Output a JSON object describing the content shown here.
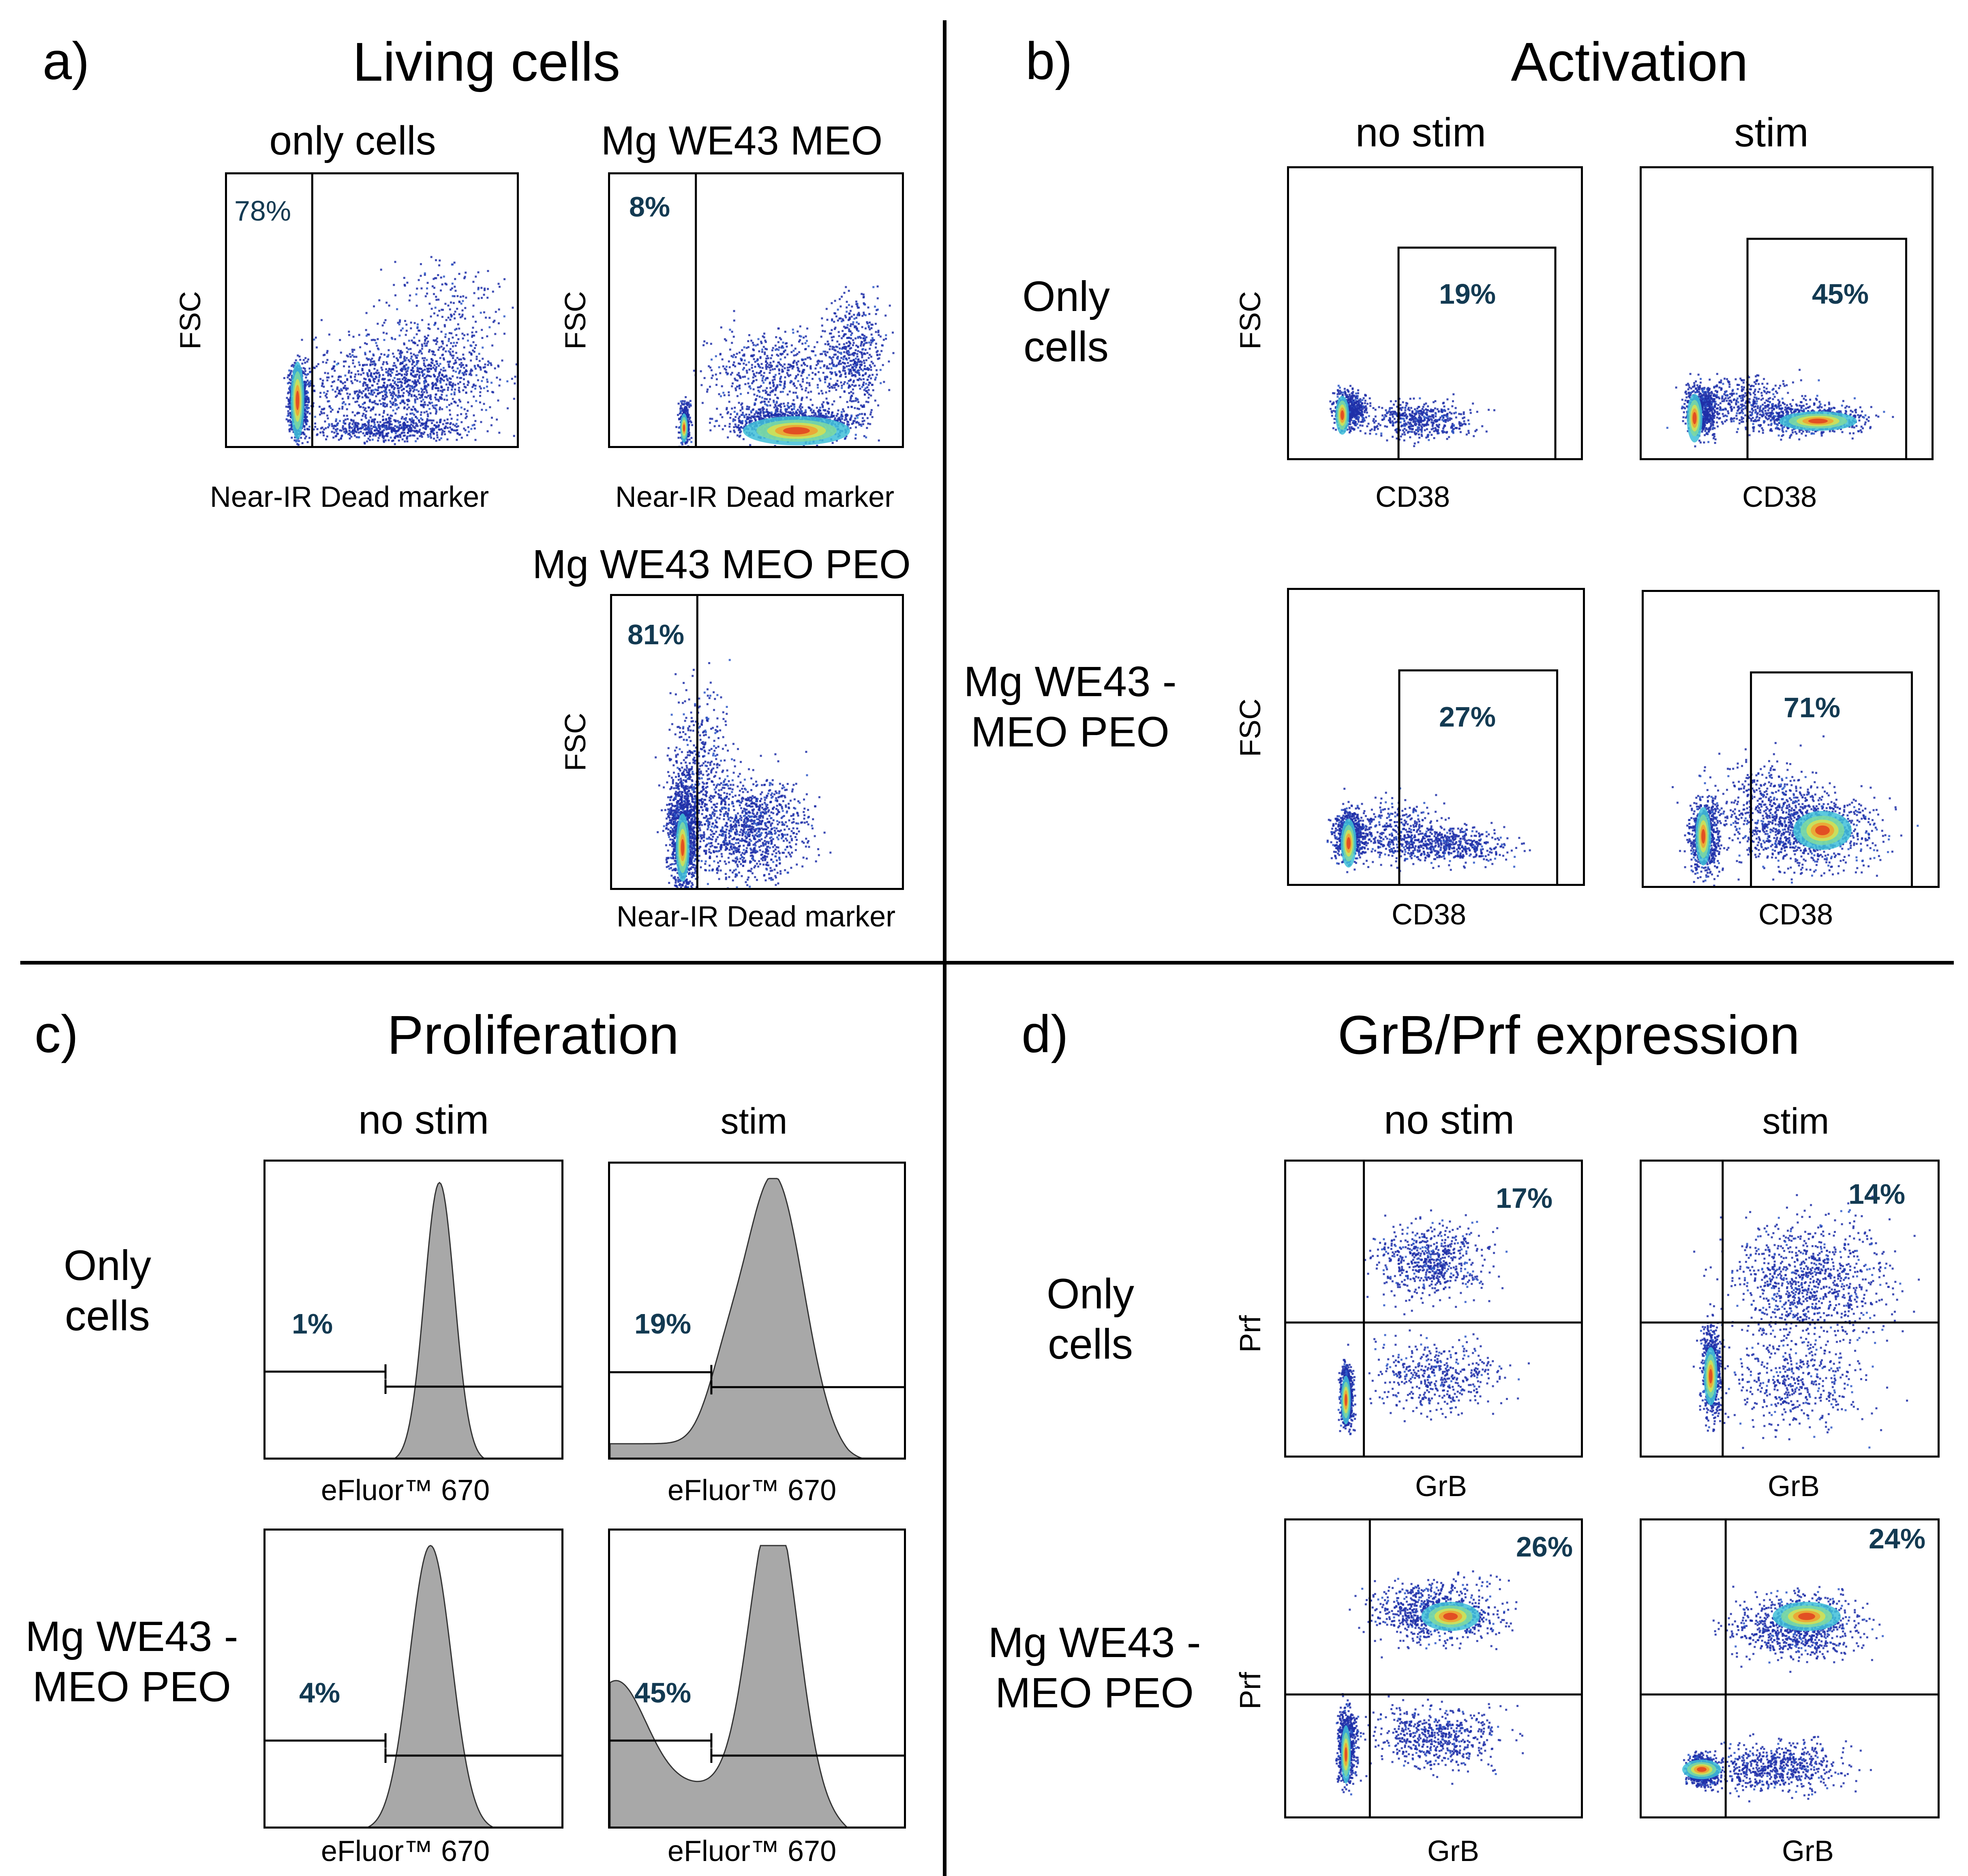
{
  "figure": {
    "dividers": "2x2 grid",
    "colors": {
      "text": "#000000",
      "percent": "#133a52",
      "histogram_fill": "#a8a8a8"
    },
    "panel_a": {
      "letter": "a)",
      "title": "Living cells",
      "plots": [
        {
          "title": "only cells",
          "ylabel": "FSC",
          "xlabel": "Near-IR Dead marker",
          "percent": "78%"
        },
        {
          "title": "Mg WE43 MEO",
          "ylabel": "FSC",
          "xlabel": "Near-IR Dead marker",
          "percent": "8%"
        },
        {
          "title": "Mg WE43 MEO PEO",
          "ylabel": "FSC",
          "xlabel": "Near-IR Dead marker",
          "percent": "81%"
        }
      ]
    },
    "panel_b": {
      "letter": "b)",
      "title": "Activation",
      "col_headers": [
        "no stim",
        "stim"
      ],
      "row_headers": [
        "Only cells",
        "Mg WE43 - MEO PEO"
      ],
      "ylabel": "FSC",
      "xlabel": "CD38",
      "percents": [
        [
          "19%",
          "45%"
        ],
        [
          "27%",
          "71%"
        ]
      ]
    },
    "panel_c": {
      "letter": "c)",
      "title": "Proliferation",
      "col_headers": [
        "no stim",
        "stim"
      ],
      "row_headers": [
        "Only cells",
        "Mg WE43 - MEO PEO"
      ],
      "xlabel": "eFluor™ 670",
      "percents": [
        [
          "1%",
          "19%"
        ],
        [
          "4%",
          "45%"
        ]
      ]
    },
    "panel_d": {
      "letter": "d)",
      "title": "GrB/Prf expression",
      "col_headers": [
        "no stim",
        "stim"
      ],
      "row_headers": [
        "Only cells",
        "Mg WE43 - MEO PEO"
      ],
      "ylabel": "Prf",
      "xlabel": "GrB",
      "percents": [
        [
          "17%",
          "14%"
        ],
        [
          "26%",
          "24%"
        ]
      ]
    }
  }
}
